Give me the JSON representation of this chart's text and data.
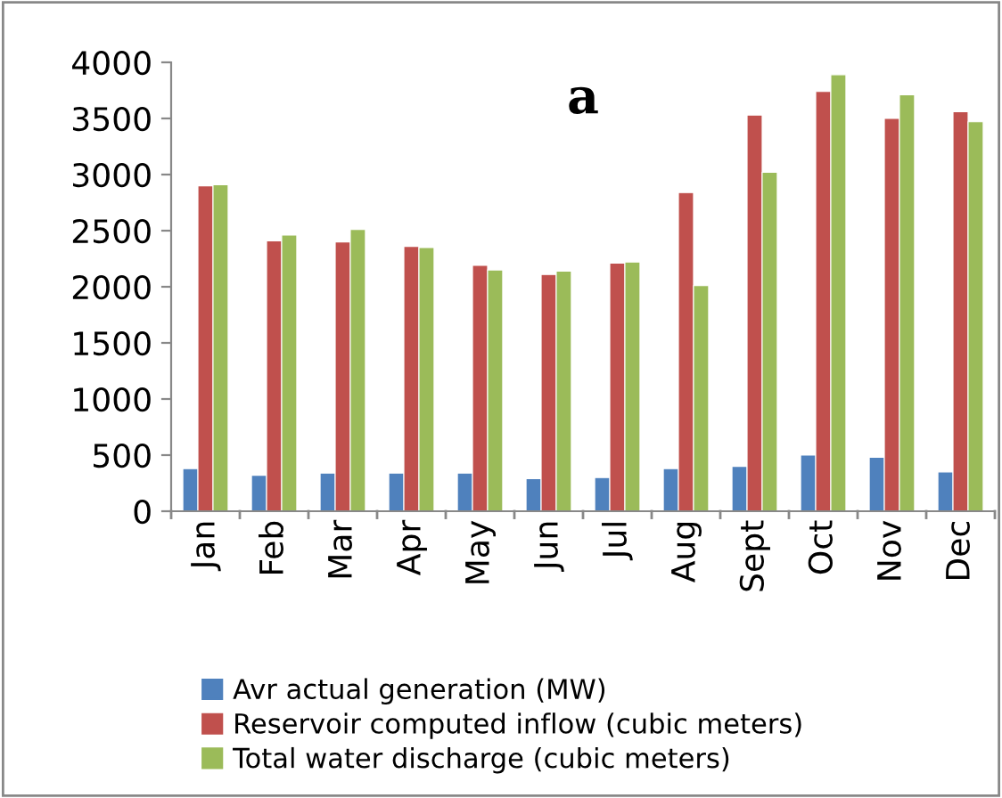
{
  "chart_data": {
    "type": "bar",
    "title": "a",
    "categories": [
      "Jan",
      "Feb",
      "Mar",
      "Apr",
      "May",
      "Jun",
      "Jul",
      "Aug",
      "Sept",
      "Oct",
      "Nov",
      "Dec"
    ],
    "series": [
      {
        "name": "Avr actual generation (MW)",
        "color": "#4f81bd",
        "values": [
          380,
          320,
          340,
          340,
          340,
          290,
          300,
          380,
          400,
          500,
          480,
          350
        ]
      },
      {
        "name": "Reservoir computed inflow (cubic meters)",
        "color": "#c0504d",
        "values": [
          2900,
          2410,
          2400,
          2360,
          2190,
          2110,
          2210,
          2840,
          3530,
          3740,
          3500,
          3560
        ]
      },
      {
        "name": "Total water discharge (cubic meters)",
        "color": "#9bbb59",
        "values": [
          2910,
          2460,
          2510,
          2350,
          2150,
          2140,
          2220,
          2010,
          3020,
          3890,
          3710,
          3470
        ]
      }
    ],
    "ylim": [
      0,
      4000
    ],
    "yticks": [
      0,
      500,
      1000,
      1500,
      2000,
      2500,
      3000,
      3500,
      4000
    ],
    "grid": false,
    "legend": "bottom"
  }
}
